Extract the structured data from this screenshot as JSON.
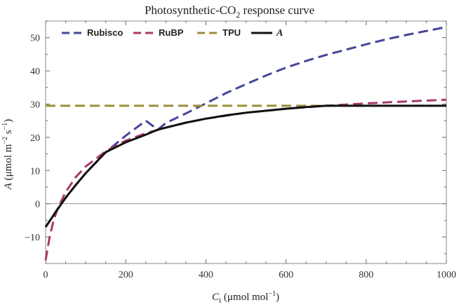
{
  "chart_data": {
    "type": "line",
    "title": {
      "main": "Photosynthetic-CO",
      "sub": "2",
      "rest": " response curve"
    },
    "xlabel": {
      "var": "C",
      "sub": "i",
      "units": " (μmol mol",
      "exp": "−1",
      "close": ")"
    },
    "ylabel": {
      "var": "A",
      "units": " (μmol m",
      "exp1": "−2",
      "mid": " s",
      "exp2": "−1",
      "close": ")"
    },
    "xlim": [
      0,
      1000
    ],
    "ylim": [
      -18,
      55
    ],
    "xticks": [
      0,
      200,
      400,
      600,
      800,
      1000
    ],
    "yticks": [
      -10,
      0,
      10,
      20,
      30,
      40,
      50
    ],
    "grid": false,
    "legend_position": "top-left",
    "series": [
      {
        "name": "Rubisco",
        "style": "dashed",
        "color": "#45459a",
        "x": [
          0,
          25,
          50,
          75,
          100,
          150,
          200,
          250,
          280,
          300,
          350,
          400,
          450,
          500,
          550,
          600,
          650,
          700,
          750,
          800,
          850,
          900,
          950,
          1000
        ],
        "y": [
          -7,
          -2.5,
          1.8,
          5.6,
          9.2,
          15.5,
          20.5,
          25.0,
          22.3,
          24.3,
          27.2,
          30.2,
          33.3,
          36.0,
          38.6,
          41.0,
          43.0,
          44.8,
          46.4,
          48.0,
          49.5,
          50.8,
          52.0,
          53.2
        ]
      },
      {
        "name": "RuBP",
        "style": "dashed",
        "color": "#a8396b",
        "x": [
          0,
          10,
          20,
          30,
          40,
          50,
          75,
          100,
          150,
          200,
          250,
          300,
          350,
          400,
          500,
          600,
          700,
          800,
          900,
          1000
        ],
        "y": [
          -17,
          -10,
          -5,
          -1.5,
          1.0,
          3.5,
          8.0,
          11.2,
          15.8,
          19.0,
          21.2,
          22.9,
          24.4,
          25.6,
          27.4,
          28.6,
          29.5,
          30.2,
          30.8,
          31.3
        ]
      },
      {
        "name": "TPU",
        "style": "dashed",
        "color": "#9e8c3a",
        "x": [
          0,
          1000
        ],
        "y": [
          29.5,
          29.5
        ]
      },
      {
        "name": "A",
        "style": "solid",
        "color": "#111111",
        "x": [
          0,
          25,
          50,
          75,
          100,
          150,
          200,
          250,
          280,
          300,
          350,
          400,
          450,
          500,
          550,
          600,
          650,
          700,
          800,
          900,
          1000
        ],
        "y": [
          -7,
          -2.5,
          1.8,
          5.6,
          9.2,
          15.5,
          18.5,
          20.8,
          22.3,
          22.9,
          24.4,
          25.6,
          26.6,
          27.4,
          28.0,
          28.6,
          29.1,
          29.5,
          29.5,
          29.5,
          29.5
        ]
      }
    ]
  }
}
